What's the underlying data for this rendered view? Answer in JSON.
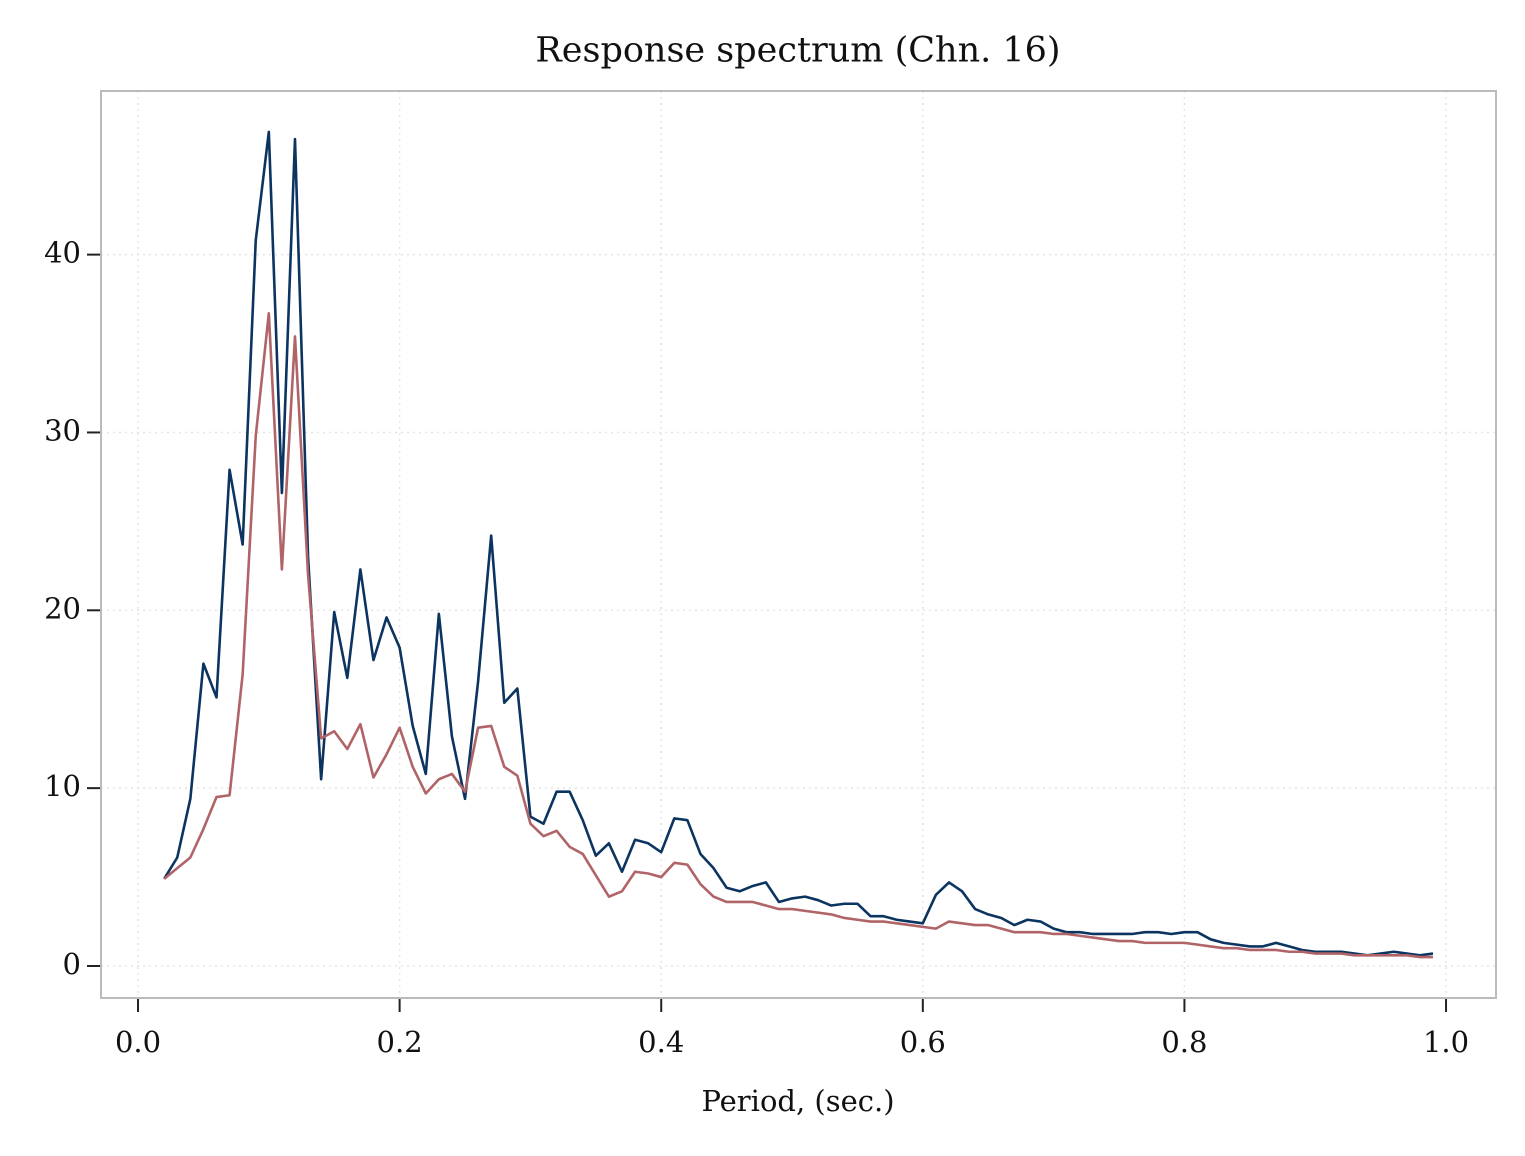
{
  "chart_data": {
    "type": "line",
    "title": "Response spectrum (Chn. 16)",
    "x_label": "Period, (sec.)",
    "x": [
      0.02,
      0.03,
      0.04,
      0.05,
      0.06,
      0.07,
      0.08,
      0.09,
      0.1,
      0.11,
      0.12,
      0.13,
      0.14,
      0.15,
      0.16,
      0.17,
      0.18,
      0.19,
      0.2,
      0.21,
      0.22,
      0.23,
      0.24,
      0.25,
      0.26,
      0.27,
      0.28,
      0.29,
      0.3,
      0.31,
      0.32,
      0.33,
      0.34,
      0.35,
      0.36,
      0.37,
      0.38,
      0.39,
      0.4,
      0.41,
      0.42,
      0.43,
      0.44,
      0.45,
      0.46,
      0.47,
      0.48,
      0.49,
      0.5,
      0.51,
      0.52,
      0.53,
      0.54,
      0.55,
      0.56,
      0.57,
      0.58,
      0.59,
      0.6,
      0.61,
      0.62,
      0.63,
      0.64,
      0.65,
      0.66,
      0.67,
      0.68,
      0.69,
      0.7,
      0.71,
      0.72,
      0.73,
      0.74,
      0.75,
      0.76,
      0.77,
      0.78,
      0.79,
      0.8,
      0.81,
      0.82,
      0.83,
      0.84,
      0.85,
      0.86,
      0.87,
      0.88,
      0.89,
      0.9,
      0.91,
      0.92,
      0.93,
      0.94,
      0.95,
      0.96,
      0.97,
      0.98,
      0.99
    ],
    "series": [
      {
        "color": "#0b3460",
        "values": [
          4.9,
          6.1,
          9.4,
          17.0,
          15.1,
          27.9,
          23.7,
          40.8,
          46.9,
          26.6,
          46.5,
          23.0,
          10.5,
          19.9,
          16.2,
          22.3,
          17.2,
          19.6,
          17.9,
          13.5,
          10.8,
          19.8,
          12.9,
          9.4,
          16.0,
          24.2,
          14.8,
          15.6,
          8.4,
          8.0,
          9.8,
          9.8,
          8.2,
          6.2,
          6.9,
          5.3,
          7.1,
          6.9,
          6.4,
          8.3,
          8.2,
          6.3,
          5.5,
          4.4,
          4.2,
          4.5,
          4.7,
          3.6,
          3.8,
          3.9,
          3.7,
          3.4,
          3.5,
          3.5,
          2.8,
          2.8,
          2.6,
          2.5,
          2.4,
          4.0,
          4.7,
          4.2,
          3.2,
          2.9,
          2.7,
          2.3,
          2.6,
          2.5,
          2.1,
          1.9,
          1.9,
          1.8,
          1.8,
          1.8,
          1.8,
          1.9,
          1.9,
          1.8,
          1.9,
          1.9,
          1.5,
          1.3,
          1.2,
          1.1,
          1.1,
          1.3,
          1.1,
          0.9,
          0.8,
          0.8,
          0.8,
          0.7,
          0.6,
          0.7,
          0.8,
          0.7,
          0.6,
          0.7
        ]
      },
      {
        "color": "#b06468",
        "values": [
          4.9,
          5.5,
          6.1,
          7.7,
          9.5,
          9.6,
          16.4,
          29.8,
          36.7,
          22.3,
          35.4,
          22.0,
          12.8,
          13.2,
          12.2,
          13.6,
          10.6,
          11.9,
          13.4,
          11.2,
          9.7,
          10.5,
          10.8,
          9.8,
          13.4,
          13.5,
          11.2,
          10.7,
          8.0,
          7.3,
          7.6,
          6.7,
          6.3,
          5.1,
          3.9,
          4.2,
          5.3,
          5.2,
          5.0,
          5.8,
          5.7,
          4.6,
          3.9,
          3.6,
          3.6,
          3.6,
          3.4,
          3.2,
          3.2,
          3.1,
          3.0,
          2.9,
          2.7,
          2.6,
          2.5,
          2.5,
          2.4,
          2.3,
          2.2,
          2.1,
          2.5,
          2.4,
          2.3,
          2.3,
          2.1,
          1.9,
          1.9,
          1.9,
          1.8,
          1.8,
          1.7,
          1.6,
          1.5,
          1.4,
          1.4,
          1.3,
          1.3,
          1.3,
          1.3,
          1.2,
          1.1,
          1.0,
          1.0,
          0.9,
          0.9,
          0.9,
          0.8,
          0.8,
          0.7,
          0.7,
          0.7,
          0.6,
          0.6,
          0.6,
          0.6,
          0.6,
          0.5,
          0.5
        ]
      }
    ],
    "xlim": [
      -0.0283,
      1.0382
    ],
    "ylim": [
      -1.8,
      49.2
    ],
    "xticks": [
      {
        "value": 0,
        "label": "0.0"
      },
      0.2,
      0.4,
      0.6,
      0.8,
      {
        "value": 1,
        "label": "1.0"
      }
    ],
    "yticks": [
      0,
      10,
      20,
      30,
      40
    ],
    "grid": true
  }
}
